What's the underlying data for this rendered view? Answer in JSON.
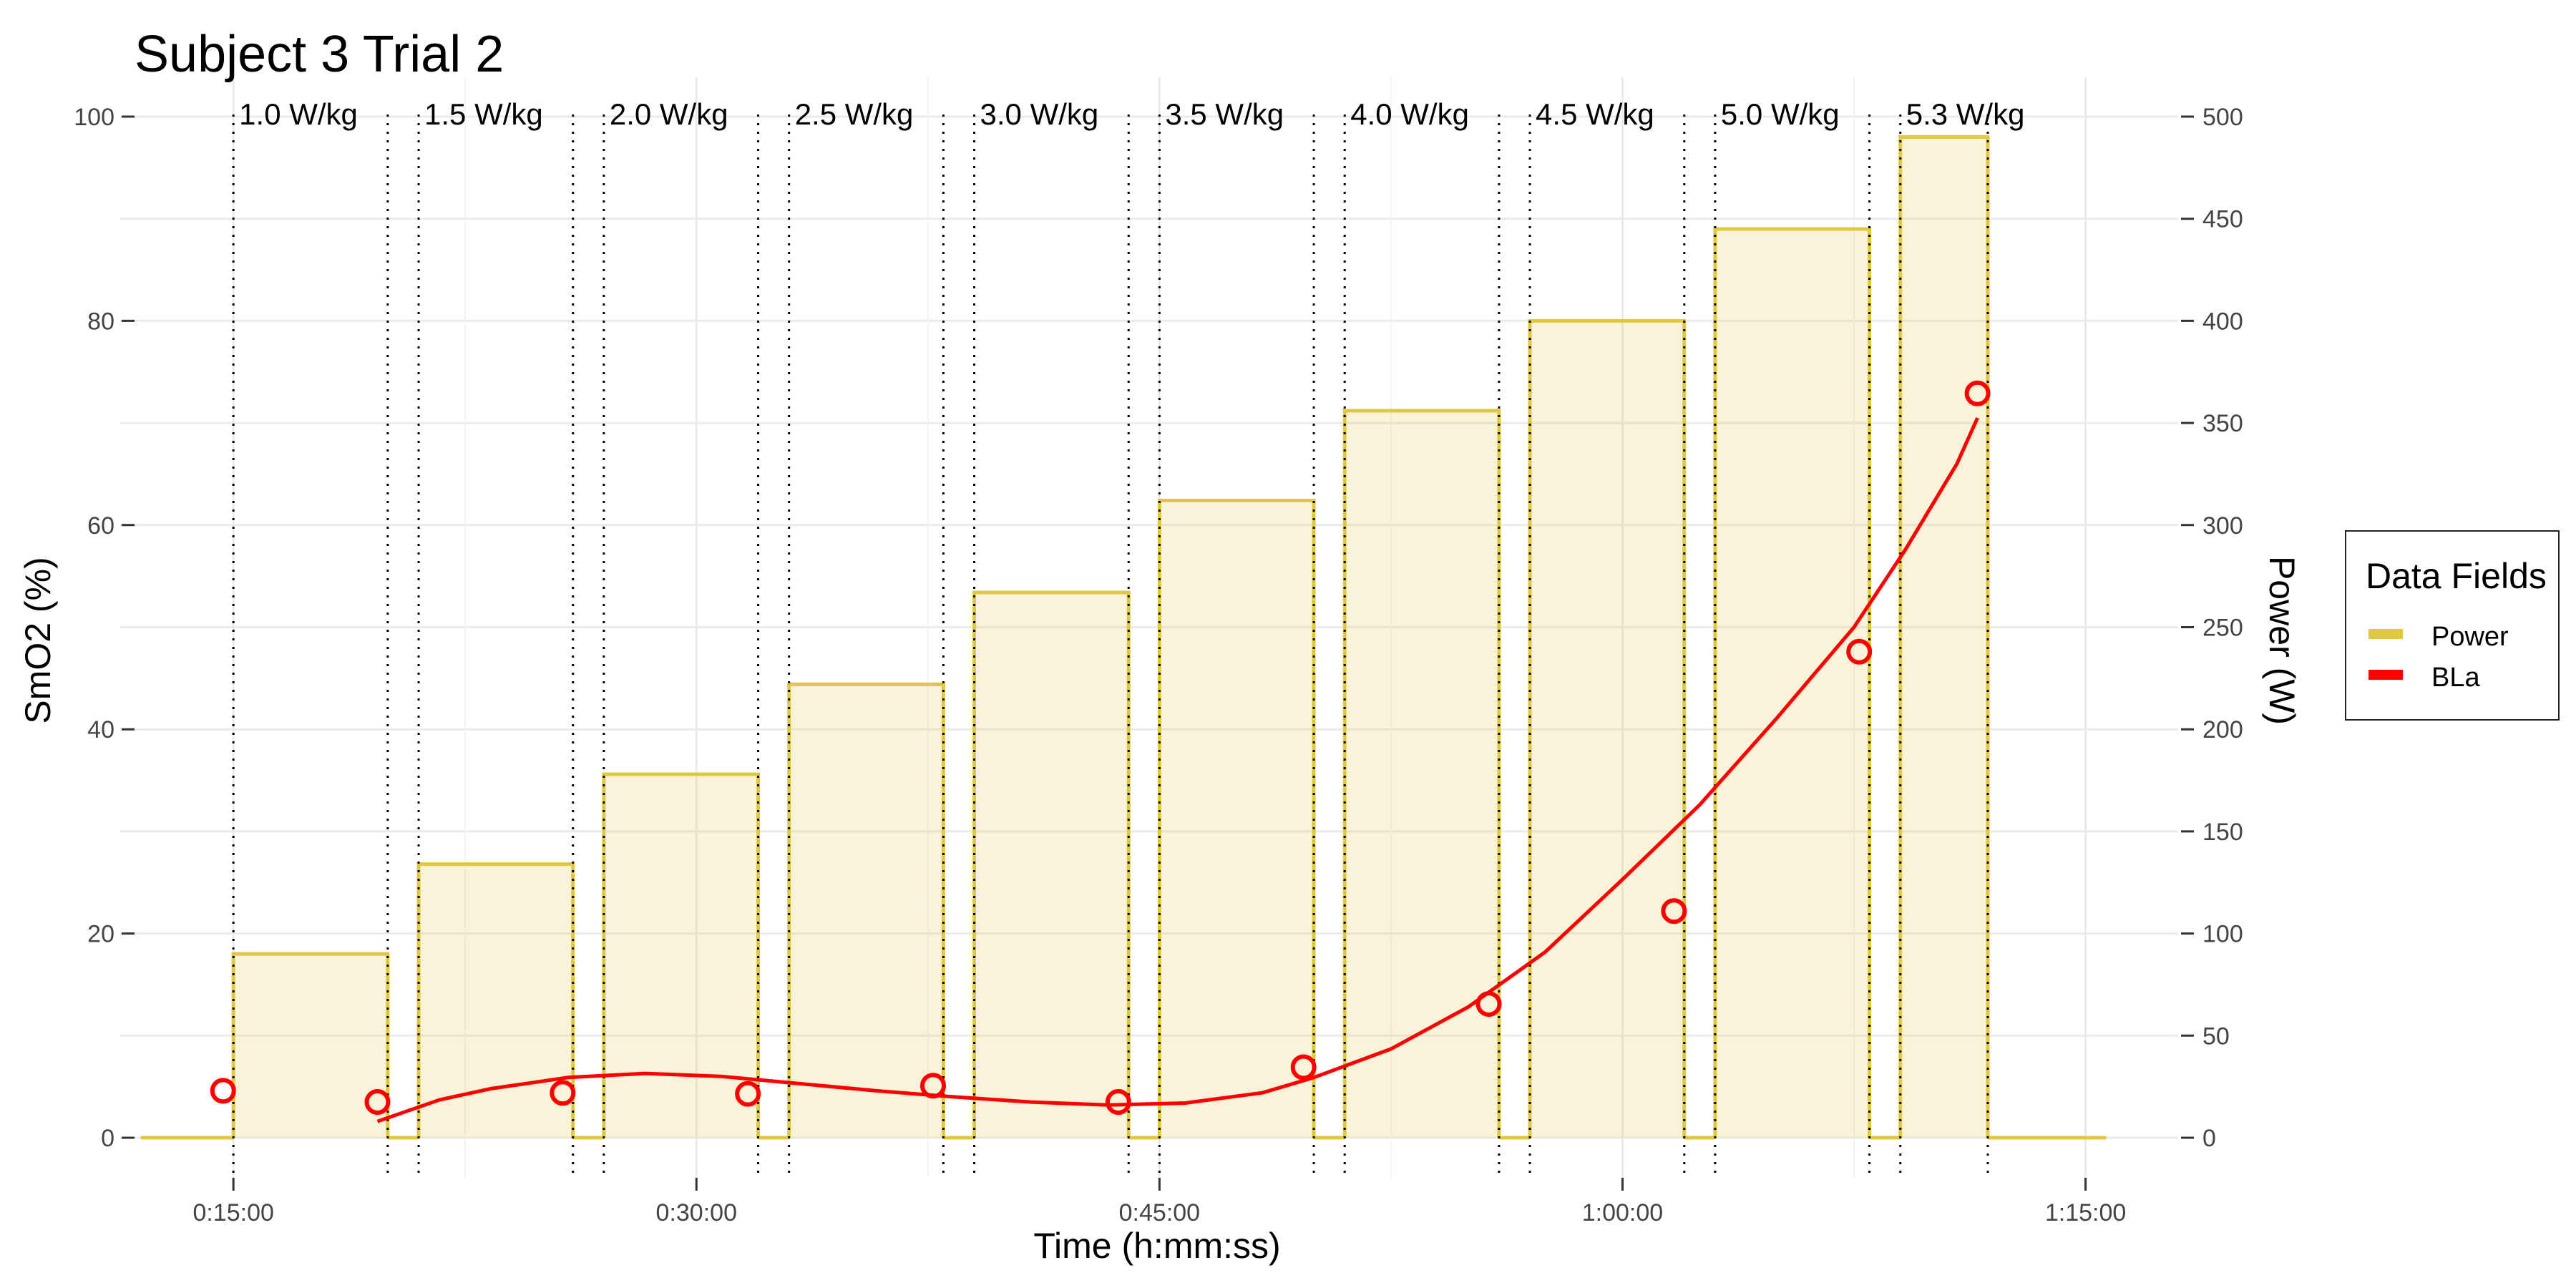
{
  "chart_data": {
    "type": "line",
    "title": "Subject 3 Trial 2",
    "xlabel": "Time (h:mm:ss)",
    "ylabel_left": "SmO2 (%)",
    "ylabel_right": "Power (W)",
    "xlim_seconds": [
      680,
      4680
    ],
    "ylim_left": [
      0,
      100
    ],
    "ylim_right": [
      0,
      500
    ],
    "x_ticks": [
      {
        "seconds": 900,
        "label": "0:15:00"
      },
      {
        "seconds": 1800,
        "label": "0:30:00"
      },
      {
        "seconds": 2700,
        "label": "0:45:00"
      },
      {
        "seconds": 3600,
        "label": "1:00:00"
      },
      {
        "seconds": 4500,
        "label": "1:15:00"
      }
    ],
    "y_ticks_left": [
      0,
      20,
      40,
      60,
      80,
      100
    ],
    "y_ticks_right": [
      0,
      50,
      100,
      150,
      200,
      250,
      300,
      350,
      400,
      450,
      500
    ],
    "grid": true,
    "legend": {
      "title": "Data Fields",
      "placement": "right",
      "entries": [
        {
          "name": "Power",
          "color": "#E0C840"
        },
        {
          "name": "BLa",
          "color": "#FF0000"
        }
      ]
    },
    "power_stages": [
      {
        "label": "1.0 W/kg",
        "start": 900,
        "end": 1200,
        "watts": 90
      },
      {
        "label": "1.5 W/kg",
        "start": 1260,
        "end": 1560,
        "watts": 134
      },
      {
        "label": "2.0 W/kg",
        "start": 1620,
        "end": 1920,
        "watts": 178
      },
      {
        "label": "2.5 W/kg",
        "start": 1980,
        "end": 2280,
        "watts": 222
      },
      {
        "label": "3.0 W/kg",
        "start": 2340,
        "end": 2640,
        "watts": 267
      },
      {
        "label": "3.5 W/kg",
        "start": 2700,
        "end": 3000,
        "watts": 312
      },
      {
        "label": "4.0 W/kg",
        "start": 3060,
        "end": 3360,
        "watts": 356
      },
      {
        "label": "4.5 W/kg",
        "start": 3420,
        "end": 3720,
        "watts": 400
      },
      {
        "label": "5.0 W/kg",
        "start": 3780,
        "end": 4080,
        "watts": 445
      },
      {
        "label": "5.3 W/kg",
        "start": 4140,
        "end": 4310,
        "watts": 490
      }
    ],
    "power_baseline": [
      {
        "start": 720,
        "end": 900,
        "watts": 0
      },
      {
        "start": 4310,
        "end": 4540,
        "watts": 0
      }
    ],
    "stage_boundaries": [
      900,
      1200,
      1260,
      1560,
      1620,
      1920,
      1980,
      2280,
      2340,
      2640,
      2700,
      3000,
      3060,
      3360,
      3420,
      3720,
      3780,
      4080,
      4140,
      4310
    ],
    "bla_points": [
      {
        "x": 880,
        "y": 4.6
      },
      {
        "x": 1180,
        "y": 3.5
      },
      {
        "x": 1540,
        "y": 4.4
      },
      {
        "x": 1900,
        "y": 4.3
      },
      {
        "x": 2260,
        "y": 5.1
      },
      {
        "x": 2620,
        "y": 3.5
      },
      {
        "x": 2980,
        "y": 6.9
      },
      {
        "x": 3340,
        "y": 13.1
      },
      {
        "x": 3700,
        "y": 22.2
      },
      {
        "x": 4060,
        "y": 47.6
      },
      {
        "x": 4290,
        "y": 72.9
      }
    ],
    "bla_fit_curve": [
      {
        "x": 1180,
        "y": 1.6
      },
      {
        "x": 1300,
        "y": 3.7
      },
      {
        "x": 1400,
        "y": 4.8
      },
      {
        "x": 1550,
        "y": 5.9
      },
      {
        "x": 1700,
        "y": 6.3
      },
      {
        "x": 1850,
        "y": 6.0
      },
      {
        "x": 2000,
        "y": 5.3
      },
      {
        "x": 2150,
        "y": 4.6
      },
      {
        "x": 2300,
        "y": 4.0
      },
      {
        "x": 2450,
        "y": 3.5
      },
      {
        "x": 2600,
        "y": 3.2
      },
      {
        "x": 2750,
        "y": 3.4
      },
      {
        "x": 2900,
        "y": 4.4
      },
      {
        "x": 3000,
        "y": 5.9
      },
      {
        "x": 3150,
        "y": 8.7
      },
      {
        "x": 3300,
        "y": 12.8
      },
      {
        "x": 3450,
        "y": 18.2
      },
      {
        "x": 3600,
        "y": 25.3
      },
      {
        "x": 3750,
        "y": 32.6
      },
      {
        "x": 3900,
        "y": 41.1
      },
      {
        "x": 4050,
        "y": 50.0
      },
      {
        "x": 4150,
        "y": 57.6
      },
      {
        "x": 4250,
        "y": 66.0
      },
      {
        "x": 4290,
        "y": 70.5
      }
    ]
  }
}
